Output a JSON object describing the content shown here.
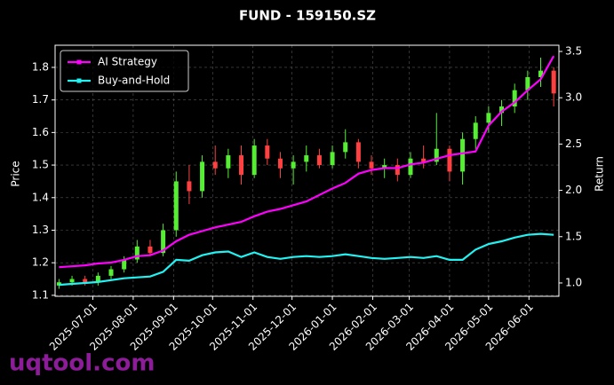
{
  "chart_data": {
    "type": "candlestick",
    "title": "FUND - 159150.SZ",
    "ylabel": "Price",
    "y2label": "Return",
    "watermark": "uqtool.com",
    "x": [
      "2025-06-05",
      "2025-06-15",
      "2025-06-25",
      "2025-07-05",
      "2025-07-15",
      "2025-07-25",
      "2025-08-04",
      "2025-08-14",
      "2025-08-24",
      "2025-09-03",
      "2025-09-13",
      "2025-09-23",
      "2025-10-03",
      "2025-10-13",
      "2025-10-23",
      "2025-11-02",
      "2025-11-12",
      "2025-11-22",
      "2025-12-02",
      "2025-12-12",
      "2025-12-22",
      "2026-01-01",
      "2026-01-11",
      "2026-01-21",
      "2026-01-31",
      "2026-02-10",
      "2026-02-20",
      "2026-03-02",
      "2026-03-12",
      "2026-03-22",
      "2026-04-01",
      "2026-04-11",
      "2026-04-21",
      "2026-05-01",
      "2026-05-11",
      "2026-05-21",
      "2026-05-31",
      "2026-06-10",
      "2026-06-20"
    ],
    "open": [
      1.13,
      1.14,
      1.15,
      1.14,
      1.16,
      1.18,
      1.21,
      1.25,
      1.23,
      1.3,
      1.45,
      1.42,
      1.51,
      1.49,
      1.53,
      1.47,
      1.56,
      1.52,
      1.49,
      1.51,
      1.53,
      1.5,
      1.54,
      1.57,
      1.51,
      1.49,
      1.5,
      1.47,
      1.52,
      1.51,
      1.55,
      1.48,
      1.58,
      1.63,
      1.66,
      1.68,
      1.73,
      1.77,
      1.79
    ],
    "high": [
      1.15,
      1.16,
      1.16,
      1.17,
      1.19,
      1.22,
      1.27,
      1.27,
      1.32,
      1.48,
      1.5,
      1.53,
      1.56,
      1.55,
      1.56,
      1.58,
      1.58,
      1.54,
      1.53,
      1.56,
      1.55,
      1.56,
      1.61,
      1.58,
      1.53,
      1.52,
      1.52,
      1.54,
      1.56,
      1.66,
      1.56,
      1.6,
      1.65,
      1.68,
      1.7,
      1.75,
      1.79,
      1.83,
      1.8
    ],
    "low": [
      1.12,
      1.13,
      1.13,
      1.13,
      1.15,
      1.17,
      1.2,
      1.22,
      1.22,
      1.28,
      1.38,
      1.4,
      1.47,
      1.46,
      1.44,
      1.46,
      1.5,
      1.46,
      1.44,
      1.48,
      1.49,
      1.49,
      1.52,
      1.49,
      1.47,
      1.46,
      1.45,
      1.46,
      1.49,
      1.5,
      1.45,
      1.44,
      1.55,
      1.6,
      1.62,
      1.66,
      1.7,
      1.74,
      1.68
    ],
    "close": [
      1.14,
      1.15,
      1.14,
      1.16,
      1.18,
      1.21,
      1.25,
      1.23,
      1.3,
      1.45,
      1.42,
      1.51,
      1.49,
      1.53,
      1.47,
      1.56,
      1.52,
      1.49,
      1.51,
      1.53,
      1.5,
      1.54,
      1.57,
      1.51,
      1.49,
      1.5,
      1.47,
      1.52,
      1.51,
      1.55,
      1.48,
      1.58,
      1.63,
      1.66,
      1.68,
      1.73,
      1.77,
      1.79,
      1.72
    ],
    "up_color": "#55ee33",
    "down_color": "#ff4040",
    "series": [
      {
        "name": "AI Strategy",
        "color": "#ff00ff",
        "axis": "y2",
        "values": [
          1.17,
          1.18,
          1.19,
          1.21,
          1.22,
          1.25,
          1.29,
          1.3,
          1.35,
          1.45,
          1.52,
          1.56,
          1.6,
          1.63,
          1.66,
          1.72,
          1.77,
          1.8,
          1.84,
          1.88,
          1.95,
          2.02,
          2.08,
          2.18,
          2.22,
          2.24,
          2.24,
          2.28,
          2.3,
          2.34,
          2.38,
          2.4,
          2.42,
          2.7,
          2.85,
          2.95,
          3.08,
          3.2,
          3.45
        ]
      },
      {
        "name": "Buy-and-Hold",
        "color": "#22f2f2",
        "axis": "y2",
        "values": [
          0.98,
          0.99,
          1.0,
          1.01,
          1.03,
          1.05,
          1.06,
          1.07,
          1.12,
          1.25,
          1.24,
          1.3,
          1.33,
          1.34,
          1.28,
          1.33,
          1.28,
          1.26,
          1.28,
          1.29,
          1.28,
          1.29,
          1.31,
          1.29,
          1.27,
          1.26,
          1.27,
          1.28,
          1.27,
          1.29,
          1.25,
          1.25,
          1.36,
          1.42,
          1.45,
          1.49,
          1.52,
          1.53,
          1.52
        ]
      }
    ],
    "xlim": [
      "2025-06-02",
      "2026-06-24"
    ],
    "xticks": [
      "2025-07-01",
      "2025-08-01",
      "2025-09-01",
      "2025-10-01",
      "2025-11-01",
      "2025-12-01",
      "2026-01-01",
      "2026-02-01",
      "2026-03-01",
      "2026-04-01",
      "2026-05-01",
      "2026-06-01"
    ],
    "ylim": [
      1.097,
      1.868
    ],
    "yticks": [
      1.1,
      1.2,
      1.3,
      1.4,
      1.5,
      1.6,
      1.7,
      1.8
    ],
    "y2lim": [
      0.856,
      3.567
    ],
    "y2ticks": [
      {
        "value": 1,
        "label": "1.0"
      },
      1.5,
      {
        "value": 2,
        "label": "2.0"
      },
      2.5,
      {
        "value": 3,
        "label": "3.0"
      },
      3.5
    ],
    "grid": true,
    "legend": "upper left"
  }
}
